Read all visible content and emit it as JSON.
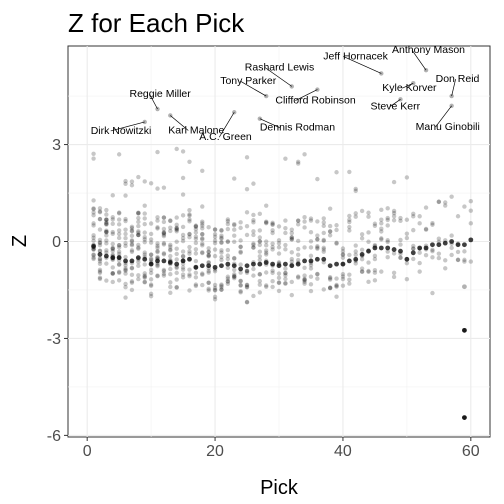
{
  "chart_data": {
    "type": "scatter",
    "title": "Z for Each Pick",
    "xlabel": "Pick",
    "ylabel": "Z",
    "xlim": [
      -3,
      63
    ],
    "ylim": [
      -6.05,
      6.05
    ],
    "x_ticks": [
      0,
      20,
      40,
      60
    ],
    "y_ticks": [
      -6,
      -3,
      0,
      3
    ],
    "grid": true,
    "point_color": "#000000",
    "point_opacity": 0.22,
    "highlighted_points": [
      {
        "x": 59,
        "y": -2.75
      },
      {
        "x": 59,
        "y": -5.45
      },
      {
        "x": 59,
        "y": -1.4
      }
    ],
    "means": [
      {
        "x": 1,
        "y": -0.15
      },
      {
        "x": 2,
        "y": -0.4
      },
      {
        "x": 3,
        "y": -0.45
      },
      {
        "x": 4,
        "y": -0.5
      },
      {
        "x": 5,
        "y": -0.5
      },
      {
        "x": 6,
        "y": -0.6
      },
      {
        "x": 7,
        "y": -0.6
      },
      {
        "x": 8,
        "y": -0.5
      },
      {
        "x": 9,
        "y": -0.55
      },
      {
        "x": 10,
        "y": -0.7
      },
      {
        "x": 11,
        "y": -0.6
      },
      {
        "x": 12,
        "y": -0.6
      },
      {
        "x": 13,
        "y": -0.65
      },
      {
        "x": 14,
        "y": -0.7
      },
      {
        "x": 15,
        "y": -0.6
      },
      {
        "x": 16,
        "y": -0.55
      },
      {
        "x": 17,
        "y": -0.8
      },
      {
        "x": 18,
        "y": -0.75
      },
      {
        "x": 19,
        "y": -0.75
      },
      {
        "x": 20,
        "y": -0.8
      },
      {
        "x": 21,
        "y": -0.75
      },
      {
        "x": 22,
        "y": -0.7
      },
      {
        "x": 23,
        "y": -0.75
      },
      {
        "x": 24,
        "y": -0.85
      },
      {
        "x": 25,
        "y": -0.75
      },
      {
        "x": 26,
        "y": -0.7
      },
      {
        "x": 27,
        "y": -0.7
      },
      {
        "x": 28,
        "y": -0.65
      },
      {
        "x": 29,
        "y": -0.7
      },
      {
        "x": 30,
        "y": -0.75
      },
      {
        "x": 31,
        "y": -0.7
      },
      {
        "x": 32,
        "y": -0.75
      },
      {
        "x": 33,
        "y": -0.7
      },
      {
        "x": 34,
        "y": -0.6
      },
      {
        "x": 35,
        "y": -0.6
      },
      {
        "x": 36,
        "y": -0.55
      },
      {
        "x": 37,
        "y": -0.55
      },
      {
        "x": 38,
        "y": -0.75
      },
      {
        "x": 39,
        "y": -0.7
      },
      {
        "x": 40,
        "y": -0.7
      },
      {
        "x": 41,
        "y": -0.6
      },
      {
        "x": 42,
        "y": -0.55
      },
      {
        "x": 43,
        "y": -0.4
      },
      {
        "x": 44,
        "y": -0.3
      },
      {
        "x": 45,
        "y": -0.2
      },
      {
        "x": 46,
        "y": -0.2
      },
      {
        "x": 47,
        "y": -0.2
      },
      {
        "x": 48,
        "y": -0.25
      },
      {
        "x": 49,
        "y": -0.3
      },
      {
        "x": 50,
        "y": -0.55
      },
      {
        "x": 51,
        "y": -0.35
      },
      {
        "x": 52,
        "y": -0.2
      },
      {
        "x": 53,
        "y": -0.2
      },
      {
        "x": 54,
        "y": -0.1
      },
      {
        "x": 55,
        "y": -0.1
      },
      {
        "x": 56,
        "y": -0.05
      },
      {
        "x": 57,
        "y": 0.0
      },
      {
        "x": 58,
        "y": -0.1
      },
      {
        "x": 59,
        "y": -0.1
      },
      {
        "x": 60,
        "y": 0.05
      }
    ],
    "annotations": [
      {
        "label": "Dirk Nowitzki",
        "x": 9,
        "y": 3.7
      },
      {
        "label": "Reggie Miller",
        "x": 11,
        "y": 4.1
      },
      {
        "label": "Karl Malone",
        "x": 13,
        "y": 3.9
      },
      {
        "label": "A.C. Green",
        "x": 23,
        "y": 4.0
      },
      {
        "label": "Tony Parker",
        "x": 28,
        "y": 4.5
      },
      {
        "label": "Rashard Lewis",
        "x": 32,
        "y": 4.8
      },
      {
        "label": "Dennis Rodman",
        "x": 27,
        "y": 3.8
      },
      {
        "label": "Clifford Robinson",
        "x": 36,
        "y": 4.7
      },
      {
        "label": "Jeff Hornacek",
        "x": 46,
        "y": 5.2
      },
      {
        "label": "Anthony Mason",
        "x": 53,
        "y": 5.3
      },
      {
        "label": "Kyle Korver",
        "x": 51,
        "y": 4.9
      },
      {
        "label": "Steve Kerr",
        "x": 49,
        "y": 4.4
      },
      {
        "label": "Don Reid",
        "x": 57,
        "y": 4.5
      },
      {
        "label": "Manu Ginobili",
        "x": 57,
        "y": 4.2
      }
    ]
  }
}
